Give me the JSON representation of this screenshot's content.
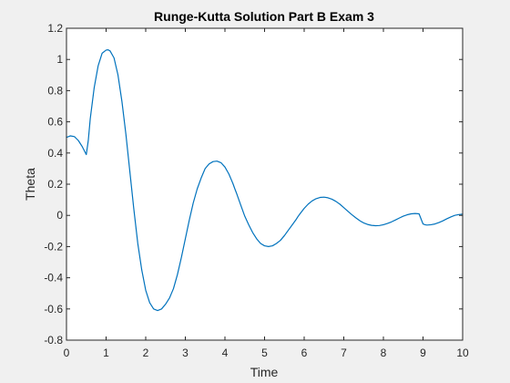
{
  "chart_data": {
    "type": "line",
    "title": "Runge-Kutta Solution Part B Exam 3",
    "xlabel": "Time",
    "ylabel": "Theta",
    "xlim": [
      0,
      10
    ],
    "ylim": [
      -0.8,
      1.2
    ],
    "xticks": [
      0,
      1,
      2,
      3,
      4,
      5,
      6,
      7,
      8,
      9,
      10
    ],
    "yticks": [
      -0.8,
      -0.6,
      -0.4,
      -0.2,
      0,
      0.2,
      0.4,
      0.6,
      0.8,
      1,
      1.2
    ],
    "xtick_labels": [
      "0",
      "1",
      "2",
      "3",
      "4",
      "5",
      "6",
      "7",
      "8",
      "9",
      "10"
    ],
    "ytick_labels": [
      "-0.8",
      "-0.6",
      "-0.4",
      "-0.2",
      "0",
      "0.2",
      "0.4",
      "0.6",
      "0.8",
      "1",
      "1.2"
    ],
    "grid": false,
    "legend": "none",
    "colors": {
      "background": "#f0f0f0",
      "axes_background": "#ffffff",
      "axes": "#262626",
      "series": "#0072bd"
    },
    "series": [
      {
        "x": [
          0,
          0.1,
          0.2,
          0.3,
          0.4,
          0.5,
          0.55,
          0.6,
          0.7,
          0.8,
          0.9,
          1.0,
          1.05,
          1.1,
          1.2,
          1.3,
          1.4,
          1.5,
          1.6,
          1.7,
          1.8,
          1.9,
          2.0,
          2.1,
          2.2,
          2.3,
          2.4,
          2.5,
          2.6,
          2.65,
          2.7,
          2.8,
          2.9,
          3.0,
          3.1,
          3.2,
          3.3,
          3.4,
          3.5,
          3.6,
          3.7,
          3.8,
          3.9,
          4.0,
          4.1,
          4.2,
          4.25,
          4.3,
          4.4,
          4.5,
          4.6,
          4.7,
          4.8,
          4.9,
          5.0,
          5.1,
          5.2,
          5.3,
          5.4,
          5.5,
          5.6,
          5.7,
          5.8,
          5.85,
          5.9,
          6.0,
          6.1,
          6.2,
          6.3,
          6.4,
          6.5,
          6.6,
          6.7,
          6.8,
          6.9,
          7.0,
          7.1,
          7.2,
          7.3,
          7.4,
          7.45,
          7.5,
          7.6,
          7.7,
          7.8,
          7.9,
          8.0,
          8.1,
          8.2,
          8.3,
          8.4,
          8.5,
          8.6,
          8.7,
          8.8,
          8.9,
          9.0,
          9.05,
          9.1,
          9.2,
          9.3,
          9.4,
          9.5,
          9.6,
          9.7,
          9.8,
          9.9,
          10.0
        ],
        "y": [
          0.5,
          0.51,
          0.505,
          0.48,
          0.44,
          0.39,
          0.48,
          0.62,
          0.82,
          0.96,
          1.04,
          1.06,
          1.062,
          1.055,
          1.01,
          0.9,
          0.73,
          0.52,
          0.28,
          0.04,
          -0.18,
          -0.35,
          -0.48,
          -0.56,
          -0.6,
          -0.61,
          -0.6,
          -0.57,
          -0.53,
          -0.5,
          -0.47,
          -0.38,
          -0.27,
          -0.15,
          -0.03,
          0.08,
          0.17,
          0.24,
          0.3,
          0.33,
          0.345,
          0.348,
          0.338,
          0.31,
          0.265,
          0.205,
          0.17,
          0.137,
          0.065,
          -0.005,
          -0.06,
          -0.11,
          -0.15,
          -0.18,
          -0.195,
          -0.2,
          -0.195,
          -0.18,
          -0.16,
          -0.13,
          -0.095,
          -0.06,
          -0.025,
          -0.005,
          0.012,
          0.045,
          0.072,
          0.093,
          0.107,
          0.115,
          0.117,
          0.113,
          0.104,
          0.09,
          0.072,
          0.05,
          0.027,
          0.005,
          -0.015,
          -0.033,
          -0.041,
          -0.048,
          -0.058,
          -0.064,
          -0.066,
          -0.065,
          -0.06,
          -0.052,
          -0.042,
          -0.03,
          -0.017,
          -0.005,
          0.004,
          0.01,
          0.012,
          0.01,
          -0.055,
          -0.06,
          -0.062,
          -0.06,
          -0.055,
          -0.046,
          -0.035,
          -0.022,
          -0.01,
          0.0,
          0.005,
          0.008
        ]
      }
    ]
  }
}
